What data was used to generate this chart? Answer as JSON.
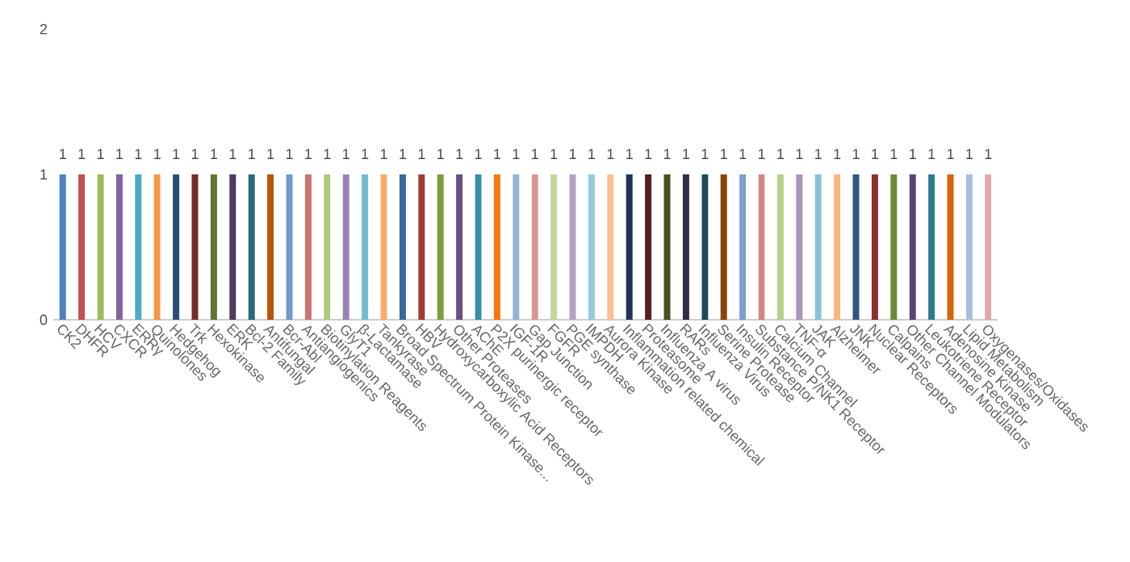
{
  "chart_data": {
    "type": "bar",
    "categories": [
      "CK2",
      "DHFR",
      "HCV",
      "CXCR",
      "ERRγ",
      "Quinolones",
      "Hedgehog",
      "Trk",
      "Hexokinase",
      "ERK",
      "Bcl-2 Family",
      "Antifungal",
      "Bcr-Abl",
      "Antiangiogenics",
      "Biotinylation Reagents",
      "GlyT1",
      "β-Lactamase",
      "Tankyrase",
      "Broad Spectrum Protein Kinase...",
      "HBV",
      "Hydroxycarboxylic Acid Receptors",
      "Other Proteases",
      "AChE",
      "P2X purinergic receptor",
      "IGF-1R",
      "Gap Junction",
      "FGFR",
      "PGE synthase",
      "IMPDH",
      "Aurora Kinase",
      "Inflammation related chemical",
      "Proteasome",
      "Influenza A virus",
      "RARs",
      "Influenza Virus",
      "Serine Protease",
      "Insulin Receptor",
      "Substance P/NK1 Receptor",
      "Calcium Channel",
      "TNF-α",
      "JAK",
      "Alzheimer",
      "JNK",
      "Nuclear Receptors",
      "Calpains",
      "Other Channel Modulators",
      "Leukotriene Receptor",
      "Adenosine Kinase",
      "Lipid Metabolism",
      "Oxygenases/Oxidases"
    ],
    "values": [
      1,
      1,
      1,
      1,
      1,
      1,
      1,
      1,
      1,
      1,
      1,
      1,
      1,
      1,
      1,
      1,
      1,
      1,
      1,
      1,
      1,
      1,
      1,
      1,
      1,
      1,
      1,
      1,
      1,
      1,
      1,
      1,
      1,
      1,
      1,
      1,
      1,
      1,
      1,
      1,
      1,
      1,
      1,
      1,
      1,
      1,
      1,
      1,
      1,
      1
    ],
    "colors": [
      "#4f81bd",
      "#c0504d",
      "#9bbb59",
      "#8064a2",
      "#4bacc6",
      "#f79646",
      "#2c4d75",
      "#772c2a",
      "#5f7530",
      "#4d3b62",
      "#276a7c",
      "#b65708",
      "#729aca",
      "#cd7371",
      "#afc97a",
      "#9983b5",
      "#6fbdd1",
      "#f9ab6b",
      "#3a679c",
      "#9f3b38",
      "#7f9c40",
      "#664f83",
      "#358ea6",
      "#f47a0a",
      "#95b3d7",
      "#d99694",
      "#c3d69b",
      "#b3a2c7",
      "#93cddd",
      "#fac090",
      "#1f3652",
      "#542020",
      "#43521f",
      "#372a45",
      "#1c4a57",
      "#8c4307",
      "#7ba0cd",
      "#d38482",
      "#b9d08a",
      "#a894be",
      "#82c5d7",
      "#f9b67d",
      "#2f5785",
      "#893431",
      "#6f8838",
      "#594471",
      "#2e7c91",
      "#d46609",
      "#a9c0dd",
      "#dfa8a7"
    ],
    "ylim": [
      0,
      2
    ],
    "yticks": [
      0,
      1,
      2
    ],
    "data_labels": true
  }
}
